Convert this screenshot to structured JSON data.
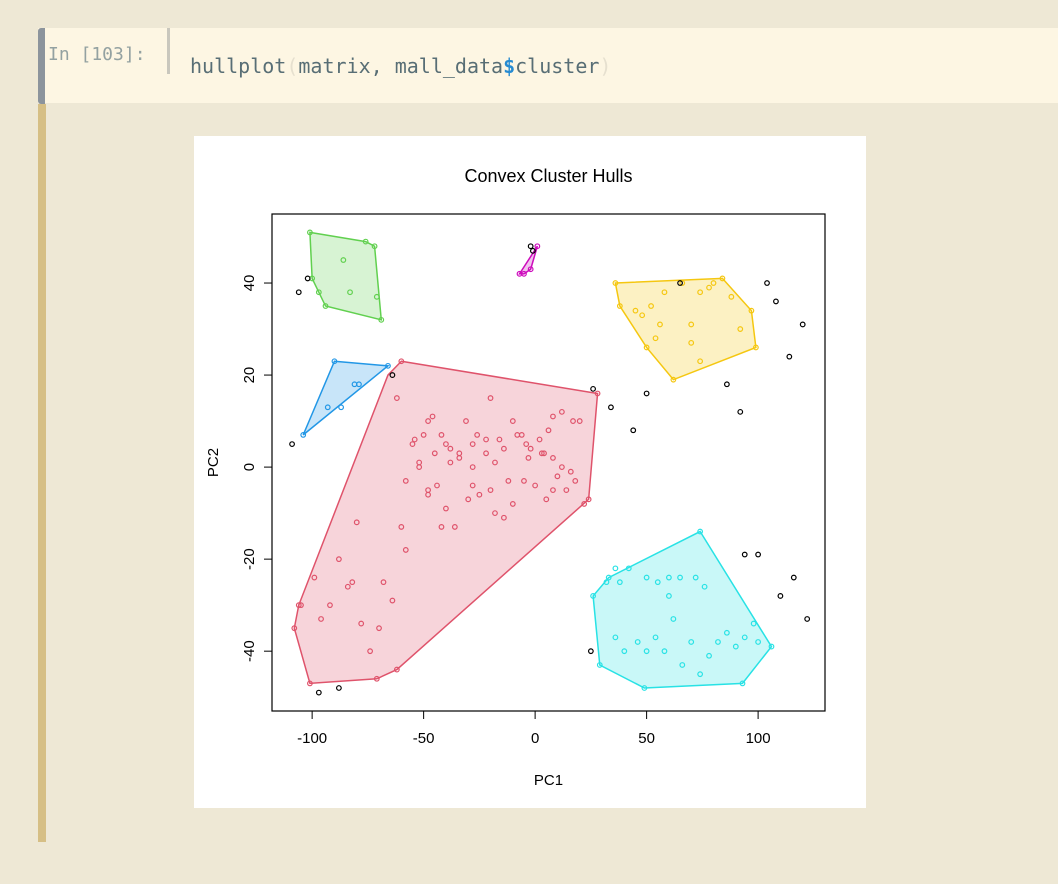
{
  "cell": {
    "prompt": "In [103]:",
    "code": {
      "func": "hullplot",
      "open_paren": "(",
      "arg1": "matrix, mall_data",
      "dollar": "$",
      "arg2": "cluster",
      "close_paren": ")"
    }
  },
  "chart_data": {
    "type": "scatter",
    "title": "Convex Cluster Hulls",
    "xlabel": "PC1",
    "ylabel": "PC2",
    "xlim": [
      -118,
      130
    ],
    "ylim": [
      -53,
      55
    ],
    "xticks": [
      -100,
      -50,
      0,
      50,
      100
    ],
    "yticks": [
      -40,
      -20,
      0,
      20,
      40
    ],
    "grid": false,
    "legend": "none",
    "clusters": [
      {
        "color": "#61d04f",
        "hull": [
          [
            -101,
            51
          ],
          [
            -76,
            49
          ],
          [
            -72,
            48
          ],
          [
            -69,
            32
          ],
          [
            -94,
            35
          ],
          [
            -100,
            41
          ]
        ],
        "points": [
          [
            -101,
            51
          ],
          [
            -76,
            49
          ],
          [
            -72,
            48
          ],
          [
            -69,
            32
          ],
          [
            -94,
            35
          ],
          [
            -100,
            41
          ],
          [
            -86,
            45
          ],
          [
            -83,
            38
          ],
          [
            -97,
            38
          ],
          [
            -71,
            37
          ]
        ]
      },
      {
        "color": "#2297e6",
        "hull": [
          [
            -90,
            23
          ],
          [
            -66,
            22
          ],
          [
            -104,
            7
          ]
        ],
        "points": [
          [
            -90,
            23
          ],
          [
            -66,
            22
          ],
          [
            -104,
            7
          ],
          [
            -93,
            13
          ],
          [
            -87,
            13
          ],
          [
            -81,
            18
          ],
          [
            -79,
            18
          ]
        ]
      },
      {
        "color": "#df536b",
        "hull": [
          [
            -60,
            23
          ],
          [
            28,
            16
          ],
          [
            24,
            -7
          ],
          [
            -62,
            -44
          ],
          [
            -71,
            -46
          ],
          [
            -101,
            -47
          ],
          [
            -108,
            -35
          ],
          [
            -106,
            -30
          ],
          [
            -66,
            20
          ]
        ],
        "points": [
          [
            -60,
            23
          ],
          [
            28,
            16
          ],
          [
            24,
            -7
          ],
          [
            -62,
            -44
          ],
          [
            -71,
            -46
          ],
          [
            -101,
            -47
          ],
          [
            -108,
            -35
          ],
          [
            -106,
            -30
          ],
          [
            -105,
            -30
          ],
          [
            -62,
            15
          ],
          [
            -55,
            5
          ],
          [
            -54,
            6
          ],
          [
            -50,
            7
          ],
          [
            -48,
            10
          ],
          [
            -46,
            11
          ],
          [
            -42,
            7
          ],
          [
            -38,
            4
          ],
          [
            -34,
            3
          ],
          [
            -31,
            10
          ],
          [
            -26,
            7
          ],
          [
            -20,
            15
          ],
          [
            -16,
            6
          ],
          [
            -10,
            10
          ],
          [
            -6,
            7
          ],
          [
            -2,
            4
          ],
          [
            3,
            3
          ],
          [
            8,
            11
          ],
          [
            12,
            12
          ],
          [
            17,
            10
          ],
          [
            20,
            10
          ],
          [
            -52,
            0
          ],
          [
            -48,
            -5
          ],
          [
            -44,
            -4
          ],
          [
            -40,
            -9
          ],
          [
            -36,
            -13
          ],
          [
            -30,
            -7
          ],
          [
            -25,
            -6
          ],
          [
            -18,
            -10
          ],
          [
            -14,
            -11
          ],
          [
            -10,
            -8
          ],
          [
            -5,
            -3
          ],
          [
            0,
            -4
          ],
          [
            5,
            -7
          ],
          [
            10,
            -2
          ],
          [
            14,
            -5
          ],
          [
            18,
            -3
          ],
          [
            22,
            -8
          ],
          [
            -58,
            -3
          ],
          [
            -52,
            1
          ],
          [
            -38,
            1
          ],
          [
            -34,
            2
          ],
          [
            -28,
            0
          ],
          [
            -22,
            3
          ],
          [
            -18,
            1
          ],
          [
            -14,
            4
          ],
          [
            -8,
            7
          ],
          [
            -4,
            5
          ],
          [
            2,
            6
          ],
          [
            6,
            8
          ],
          [
            12,
            0
          ],
          [
            16,
            -1
          ],
          [
            -80,
            -12
          ],
          [
            -60,
            -13
          ],
          [
            -58,
            -18
          ],
          [
            -82,
            -25
          ],
          [
            -84,
            -26
          ],
          [
            -88,
            -20
          ],
          [
            -92,
            -30
          ],
          [
            -99,
            -24
          ],
          [
            -78,
            -34
          ],
          [
            -74,
            -40
          ],
          [
            -68,
            -25
          ],
          [
            -64,
            -29
          ],
          [
            -96,
            -33
          ],
          [
            -70,
            -35
          ],
          [
            -48,
            -6
          ],
          [
            -42,
            -13
          ],
          [
            -28,
            -4
          ],
          [
            -20,
            -5
          ],
          [
            -12,
            -3
          ],
          [
            8,
            -5
          ],
          [
            -3,
            2
          ],
          [
            -45,
            3
          ],
          [
            -40,
            5
          ],
          [
            -28,
            5
          ],
          [
            -22,
            6
          ],
          [
            4,
            3
          ],
          [
            8,
            2
          ]
        ]
      },
      {
        "color": "#cd0bbc",
        "hull": [
          [
            -7,
            42
          ],
          [
            -5,
            42
          ],
          [
            -2,
            43
          ],
          [
            1,
            48
          ]
        ],
        "points": [
          [
            -7,
            42
          ],
          [
            -5,
            42
          ],
          [
            -2,
            43
          ],
          [
            1,
            48
          ]
        ]
      },
      {
        "color": "#f5c710",
        "hull": [
          [
            36,
            40
          ],
          [
            84,
            41
          ],
          [
            97,
            34
          ],
          [
            99,
            26
          ],
          [
            62,
            19
          ],
          [
            50,
            26
          ],
          [
            38,
            35
          ]
        ],
        "points": [
          [
            36,
            40
          ],
          [
            84,
            41
          ],
          [
            97,
            34
          ],
          [
            99,
            26
          ],
          [
            62,
            19
          ],
          [
            50,
            26
          ],
          [
            38,
            35
          ],
          [
            45,
            34
          ],
          [
            48,
            33
          ],
          [
            52,
            35
          ],
          [
            56,
            31
          ],
          [
            58,
            38
          ],
          [
            66,
            40
          ],
          [
            70,
            31
          ],
          [
            74,
            38
          ],
          [
            78,
            39
          ],
          [
            80,
            40
          ],
          [
            88,
            37
          ],
          [
            92,
            30
          ],
          [
            70,
            27
          ],
          [
            74,
            23
          ],
          [
            54,
            28
          ]
        ]
      },
      {
        "color": "#28e2e5",
        "hull": [
          [
            74,
            -14
          ],
          [
            106,
            -39
          ],
          [
            93,
            -47
          ],
          [
            49,
            -48
          ],
          [
            29,
            -43
          ],
          [
            26,
            -28
          ],
          [
            33,
            -24
          ]
        ],
        "points": [
          [
            74,
            -14
          ],
          [
            106,
            -39
          ],
          [
            93,
            -47
          ],
          [
            49,
            -48
          ],
          [
            29,
            -43
          ],
          [
            26,
            -28
          ],
          [
            33,
            -24
          ],
          [
            32,
            -25
          ],
          [
            36,
            -22
          ],
          [
            38,
            -25
          ],
          [
            42,
            -22
          ],
          [
            50,
            -24
          ],
          [
            55,
            -25
          ],
          [
            60,
            -24
          ],
          [
            65,
            -24
          ],
          [
            72,
            -24
          ],
          [
            76,
            -26
          ],
          [
            46,
            -38
          ],
          [
            50,
            -40
          ],
          [
            54,
            -37
          ],
          [
            58,
            -40
          ],
          [
            62,
            -33
          ],
          [
            66,
            -43
          ],
          [
            70,
            -38
          ],
          [
            74,
            -45
          ],
          [
            78,
            -41
          ],
          [
            82,
            -38
          ],
          [
            86,
            -36
          ],
          [
            90,
            -39
          ],
          [
            94,
            -37
          ],
          [
            98,
            -34
          ],
          [
            100,
            -38
          ],
          [
            36,
            -37
          ],
          [
            40,
            -40
          ],
          [
            60,
            -28
          ]
        ]
      }
    ],
    "noise": [
      [
        -109,
        5
      ],
      [
        -106,
        38
      ],
      [
        -102,
        41
      ],
      [
        -97,
        -49
      ],
      [
        -88,
        -48
      ],
      [
        -64,
        20
      ],
      [
        -2,
        48
      ],
      [
        -1,
        47
      ],
      [
        26,
        17
      ],
      [
        34,
        13
      ],
      [
        44,
        8
      ],
      [
        50,
        16
      ],
      [
        65,
        40
      ],
      [
        86,
        18
      ],
      [
        92,
        12
      ],
      [
        104,
        40
      ],
      [
        108,
        36
      ],
      [
        114,
        24
      ],
      [
        120,
        31
      ],
      [
        94,
        -19
      ],
      [
        100,
        -19
      ],
      [
        110,
        -28
      ],
      [
        116,
        -24
      ],
      [
        122,
        -33
      ],
      [
        25,
        -40
      ]
    ]
  }
}
